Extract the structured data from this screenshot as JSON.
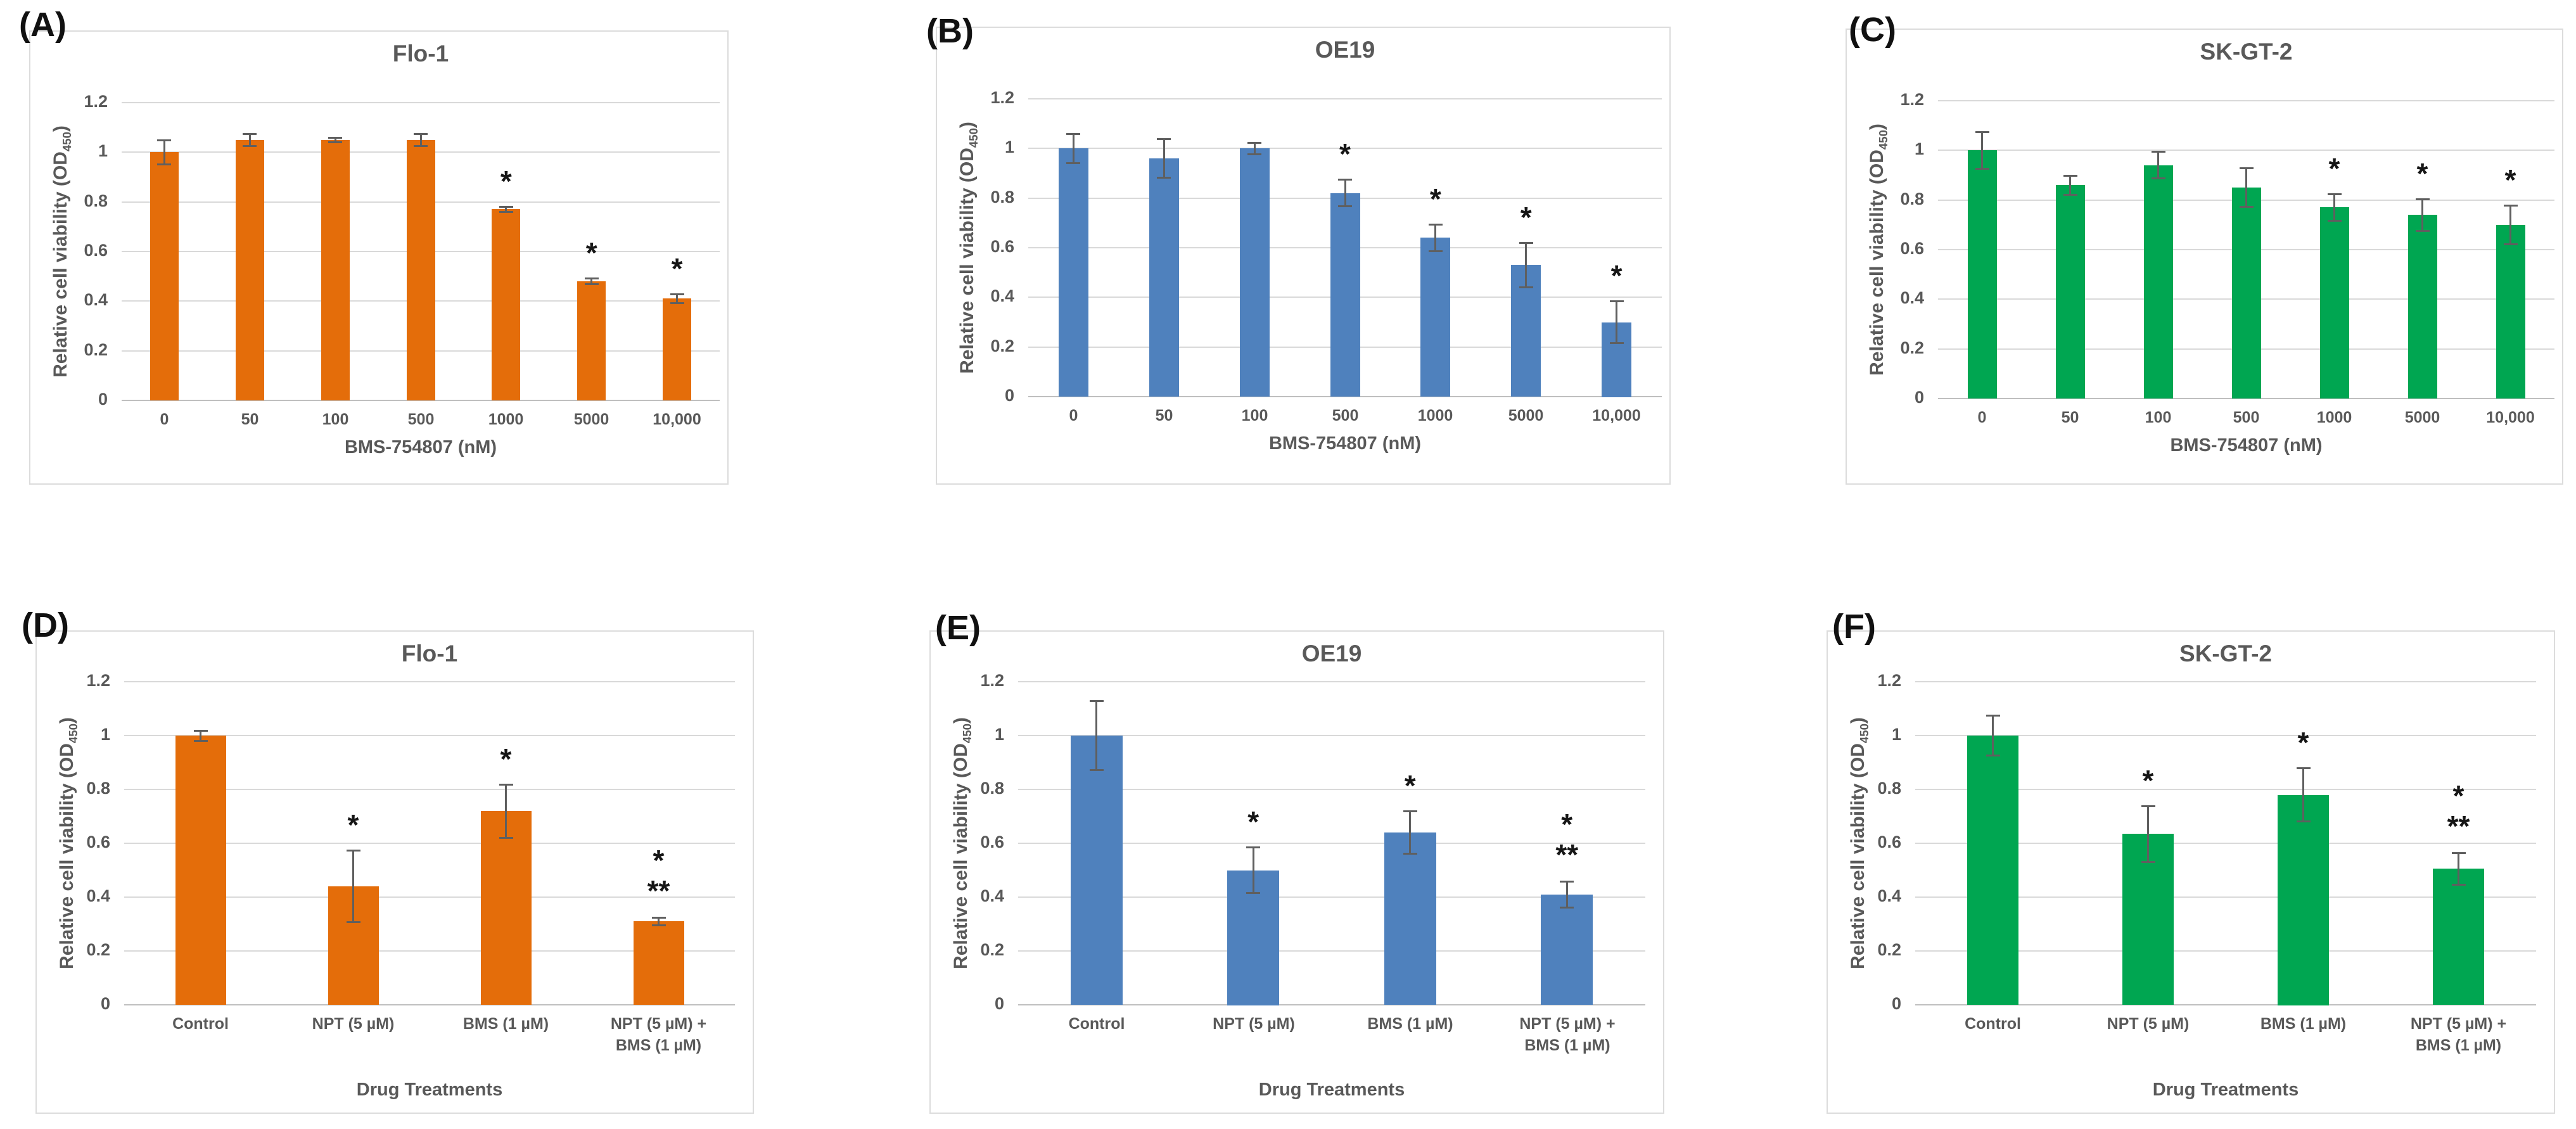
{
  "chart_data": [
    {
      "type": "bar",
      "panel_label": "(A)",
      "title": "Flo-1",
      "bar_color": "#e46d0a",
      "xlabel": "BMS-754807 (nM)",
      "ylabel_main": "Relative cell viability (OD",
      "ylabel_sub": "450",
      "ylabel_close": ")",
      "categories": [
        "0",
        "50",
        "100",
        "500",
        "1000",
        "5000",
        "10,000"
      ],
      "values": [
        1.0,
        1.05,
        1.05,
        1.05,
        0.77,
        0.48,
        0.41
      ],
      "errors": [
        0.05,
        0.025,
        0.01,
        0.025,
        0.012,
        0.012,
        0.02
      ],
      "sig": [
        [],
        [],
        [],
        [],
        [
          "*"
        ],
        [
          "*"
        ],
        [
          "*"
        ]
      ],
      "ylim": [
        0,
        1.2
      ],
      "yticks": [
        "0",
        "0.2",
        "0.4",
        "0.6",
        "0.8",
        "1",
        "1.2"
      ],
      "grid": "horizontal"
    },
    {
      "type": "bar",
      "panel_label": "(B)",
      "title": "OE19",
      "bar_color": "#4f81bd",
      "xlabel": "BMS-754807 (nM)",
      "ylabel_main": "Relative cell viability (OD",
      "ylabel_sub": "450",
      "ylabel_close": ")",
      "categories": [
        "0",
        "50",
        "100",
        "500",
        "1000",
        "5000",
        "10,000"
      ],
      "values": [
        1.0,
        0.96,
        1.0,
        0.82,
        0.64,
        0.53,
        0.3
      ],
      "errors": [
        0.06,
        0.08,
        0.025,
        0.055,
        0.055,
        0.09,
        0.085
      ],
      "sig": [
        [],
        [],
        [],
        [
          "*"
        ],
        [
          "*"
        ],
        [
          "*"
        ],
        [
          "*"
        ]
      ],
      "ylim": [
        0,
        1.2
      ],
      "yticks": [
        "0",
        "0.2",
        "0.4",
        "0.6",
        "0.8",
        "1",
        "1.2"
      ],
      "grid": "horizontal"
    },
    {
      "type": "bar",
      "panel_label": "(C)",
      "title": "SK-GT-2",
      "bar_color": "#00a651",
      "xlabel": "BMS-754807 (nM)",
      "ylabel_main": "Relative cell viability (OD",
      "ylabel_sub": "450",
      "ylabel_close": ")",
      "categories": [
        "0",
        "50",
        "100",
        "500",
        "1000",
        "5000",
        "10,000"
      ],
      "values": [
        1.0,
        0.86,
        0.94,
        0.85,
        0.77,
        0.74,
        0.7
      ],
      "errors": [
        0.075,
        0.04,
        0.055,
        0.08,
        0.055,
        0.065,
        0.08
      ],
      "sig": [
        [],
        [],
        [],
        [],
        [
          "*"
        ],
        [
          "*"
        ],
        [
          "*"
        ]
      ],
      "ylim": [
        0,
        1.2
      ],
      "yticks": [
        "0",
        "0.2",
        "0.4",
        "0.6",
        "0.8",
        "1",
        "1.2"
      ],
      "grid": "horizontal"
    },
    {
      "type": "bar",
      "panel_label": "(D)",
      "title": "Flo-1",
      "bar_color": "#e46d0a",
      "xlabel": "Drug Treatments",
      "ylabel_main": "Relative cell viability (OD",
      "ylabel_sub": "450",
      "ylabel_close": ")",
      "categories": [
        "Control",
        "NPT (5 µM)",
        "BMS (1 µM)",
        "NPT (5 µM) +\nBMS (1 µM)"
      ],
      "values": [
        1.0,
        0.44,
        0.72,
        0.31
      ],
      "errors": [
        0.02,
        0.135,
        0.1,
        0.015
      ],
      "sig": [
        [],
        [
          "*"
        ],
        [
          "*"
        ],
        [
          "*",
          "**"
        ]
      ],
      "ylim": [
        0,
        1.2
      ],
      "yticks": [
        "0",
        "0.2",
        "0.4",
        "0.6",
        "0.8",
        "1",
        "1.2"
      ],
      "grid": "horizontal"
    },
    {
      "type": "bar",
      "panel_label": "(E)",
      "title": "OE19",
      "bar_color": "#4f81bd",
      "xlabel": "Drug Treatments",
      "ylabel_main": "Relative cell viability (OD",
      "ylabel_sub": "450",
      "ylabel_close": ")",
      "categories": [
        "Control",
        "NPT (5 µM)",
        "BMS (1 µM)",
        "NPT (5 µM) +\nBMS (1 µM)"
      ],
      "values": [
        1.0,
        0.5,
        0.64,
        0.41
      ],
      "errors": [
        0.13,
        0.085,
        0.08,
        0.05
      ],
      "sig": [
        [],
        [
          "*"
        ],
        [
          "*"
        ],
        [
          "*",
          "**"
        ]
      ],
      "ylim": [
        0,
        1.2
      ],
      "yticks": [
        "0",
        "0.2",
        "0.4",
        "0.6",
        "0.8",
        "1",
        "1.2"
      ],
      "grid": "horizontal"
    },
    {
      "type": "bar",
      "panel_label": "(F)",
      "title": "SK-GT-2",
      "bar_color": "#00a651",
      "xlabel": "Drug Treatments",
      "ylabel_main": "Relative cell viability (OD",
      "ylabel_sub": "450",
      "ylabel_close": ")",
      "categories": [
        "Control",
        "NPT (5 µM)",
        "BMS (1 µM)",
        "NPT (5 µM) +\nBMS (1 µM)"
      ],
      "values": [
        1.0,
        0.635,
        0.78,
        0.505
      ],
      "errors": [
        0.075,
        0.105,
        0.1,
        0.06
      ],
      "sig": [
        [],
        [
          "*"
        ],
        [
          "*"
        ],
        [
          "*",
          "**"
        ]
      ],
      "ylim": [
        0,
        1.2
      ],
      "yticks": [
        "0",
        "0.2",
        "0.4",
        "0.6",
        "0.8",
        "1",
        "1.2"
      ],
      "grid": "horizontal"
    }
  ]
}
